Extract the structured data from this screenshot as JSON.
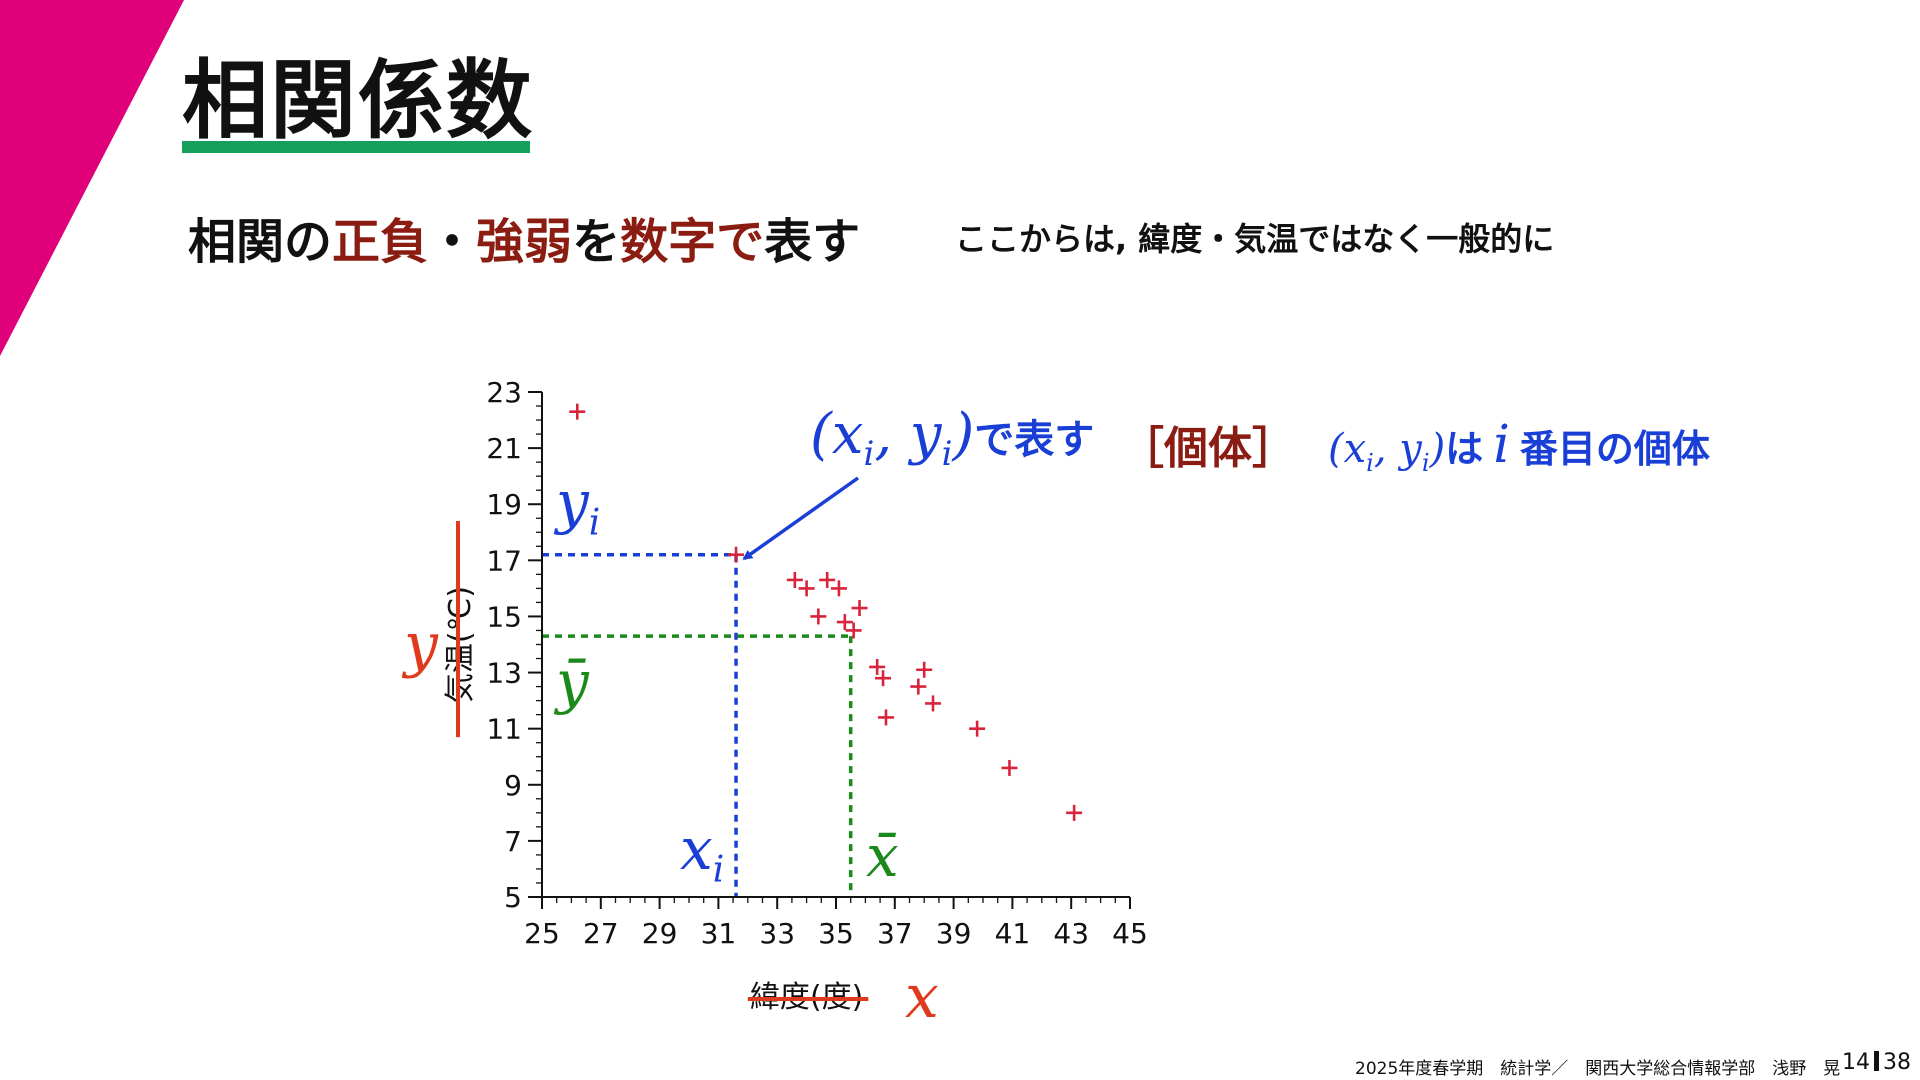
{
  "slide": {
    "title": "相関係数",
    "subtitle_parts": [
      {
        "text": "相関の",
        "emph": false
      },
      {
        "text": "正負",
        "emph": true
      },
      {
        "text": "・",
        "emph": false
      },
      {
        "text": "強弱",
        "emph": true
      },
      {
        "text": "を",
        "emph": false
      },
      {
        "text": "数字で",
        "emph": true
      },
      {
        "text": "表す",
        "emph": false
      }
    ],
    "note": "ここからは, 緯度・気温ではなく一般的に",
    "footer": "2025年度春学期　統計学／　関西大学総合情報学部　浅野　晃",
    "page_current": "14",
    "page_total": "38",
    "colors": {
      "accent": "#e0007a",
      "rule": "#14a05a",
      "emphasis": "#8b1c12",
      "blue": "#1a3fd6",
      "green": "#1b8a1b",
      "red": "#e03a1e",
      "point": "#d8243a"
    }
  },
  "annotations": {
    "point_label_var": "(x",
    "point_label_sub": "i",
    "point_label_sep": ", y",
    "point_label_sub2": "i",
    "point_label_close": ")",
    "point_label_text": "で表す",
    "individual_bracket": "［個体］",
    "individual_var": "(x",
    "individual_sub": "i",
    "individual_sep": ", y",
    "individual_sub2": "i",
    "individual_close": ")",
    "individual_text_a": "は",
    "individual_i": "i",
    "individual_text_b": "番目の個体",
    "yi_var": "y",
    "yi_sub": "i",
    "ybar": "ȳ",
    "xi_var": "x",
    "xi_sub": "i",
    "xbar": "x̄",
    "y_general": "y",
    "x_general": "x"
  },
  "chart_data": {
    "type": "scatter",
    "xlabel": "緯度(度)",
    "ylabel": "気温(℃)",
    "xlim": [
      25,
      45
    ],
    "ylim": [
      5,
      23
    ],
    "xticks": [
      25,
      27,
      29,
      31,
      33,
      35,
      37,
      39,
      41,
      43,
      45
    ],
    "yticks": [
      5,
      7,
      9,
      11,
      13,
      15,
      17,
      19,
      21,
      23
    ],
    "highlight": {
      "x": 31.6,
      "y": 17.2
    },
    "mean": {
      "x": 35.5,
      "y": 14.3
    },
    "points": [
      {
        "x": 26.2,
        "y": 22.3
      },
      {
        "x": 31.6,
        "y": 17.2
      },
      {
        "x": 33.6,
        "y": 16.3
      },
      {
        "x": 34.0,
        "y": 16.0
      },
      {
        "x": 34.4,
        "y": 15.0
      },
      {
        "x": 34.7,
        "y": 16.3
      },
      {
        "x": 35.1,
        "y": 16.0
      },
      {
        "x": 35.3,
        "y": 14.8
      },
      {
        "x": 35.6,
        "y": 14.5
      },
      {
        "x": 35.8,
        "y": 15.3
      },
      {
        "x": 36.4,
        "y": 13.2
      },
      {
        "x": 36.6,
        "y": 12.8
      },
      {
        "x": 36.7,
        "y": 11.4
      },
      {
        "x": 37.8,
        "y": 12.5
      },
      {
        "x": 38.0,
        "y": 13.1
      },
      {
        "x": 38.3,
        "y": 11.9
      },
      {
        "x": 39.8,
        "y": 11.0
      },
      {
        "x": 40.9,
        "y": 9.6
      },
      {
        "x": 43.1,
        "y": 8.0
      }
    ]
  }
}
